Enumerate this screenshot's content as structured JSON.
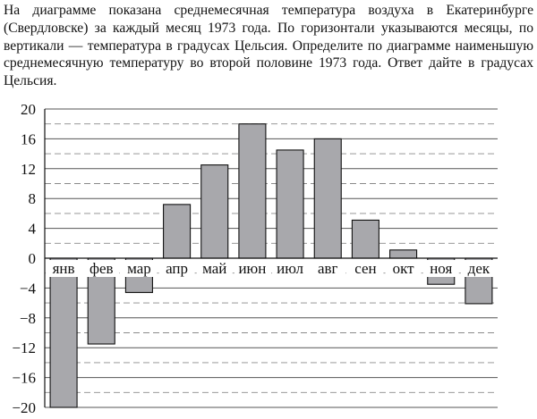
{
  "problem": {
    "text": "На диаграмме показана среднемесячная температура воздуха в Екатеринбурге (Свердловске) за каждый месяц 1973 года. По горизонтали указываются месяцы, по вертикали — температура в градусах Цельсия. Определите по диаграмме наименьшую среднемесячную температуру во второй половине 1973 года. Ответ дайте в градусах Цельсия."
  },
  "chart_data": {
    "type": "bar",
    "title": "",
    "xlabel": "",
    "ylabel": "",
    "categories": [
      "янв",
      "фев",
      "мар",
      "апр",
      "май",
      "июн",
      "июл",
      "авг",
      "сен",
      "окт",
      "ноя",
      "дек"
    ],
    "values": [
      -20,
      -11.5,
      -4.6,
      7.2,
      12.5,
      18,
      14.5,
      16,
      5.1,
      1.1,
      -3.5,
      -6.1
    ],
    "ylim": [
      -20,
      20
    ],
    "y_ticks": [
      "20",
      "16",
      "12",
      "8",
      "4",
      "0",
      "−4",
      "−8",
      "−12",
      "−16",
      "−20"
    ],
    "y_major_step": 4,
    "y_minor_dashed": true,
    "grid": true,
    "bar_color": "#a8a8ac"
  }
}
